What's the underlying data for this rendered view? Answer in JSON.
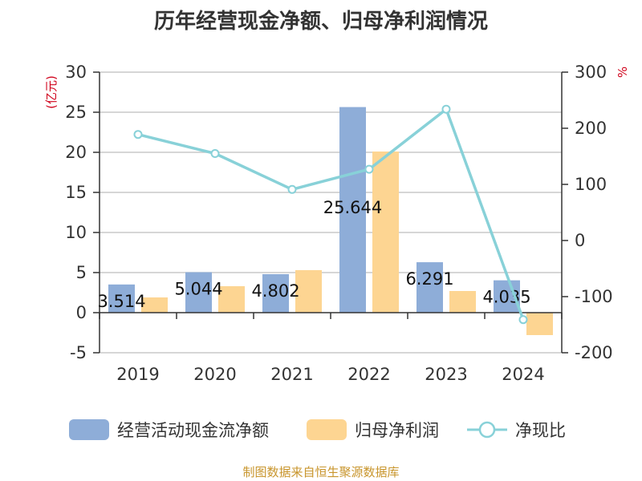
{
  "chart_data": {
    "type": "bar+line",
    "title": "历年经营现金净额、归母净利润情况",
    "categories": [
      "2019",
      "2020",
      "2021",
      "2022",
      "2023",
      "2024"
    ],
    "series": [
      {
        "name": "经营活动现金流净额",
        "type": "bar",
        "axis": "left",
        "color": "#8eadd8",
        "values": [
          3.514,
          5.044,
          4.802,
          25.644,
          6.291,
          4.035
        ],
        "labels": [
          "3.514",
          "5.044",
          "4.802",
          "25.644",
          "6.291",
          "4.035"
        ]
      },
      {
        "name": "归母净利润",
        "type": "bar",
        "axis": "left",
        "color": "#fdd592",
        "values": [
          1.9,
          3.3,
          5.3,
          20.1,
          2.7,
          -2.8
        ]
      },
      {
        "name": "净现比",
        "type": "line",
        "axis": "right",
        "color": "#88d1d8",
        "values": [
          189,
          155,
          91,
          127,
          234,
          -141
        ]
      }
    ],
    "y_left": {
      "unit": "(亿元)",
      "ylim": [
        -5,
        30
      ],
      "ticks": [
        -5,
        0,
        5,
        10,
        15,
        20,
        25,
        30
      ]
    },
    "y_right": {
      "unit": "%",
      "ylim": [
        -200,
        300
      ],
      "ticks": [
        -200,
        -100,
        0,
        100,
        200,
        300
      ]
    },
    "grid": true,
    "legend_position": "bottom",
    "source": "制图数据来自恒生聚源数据库"
  }
}
